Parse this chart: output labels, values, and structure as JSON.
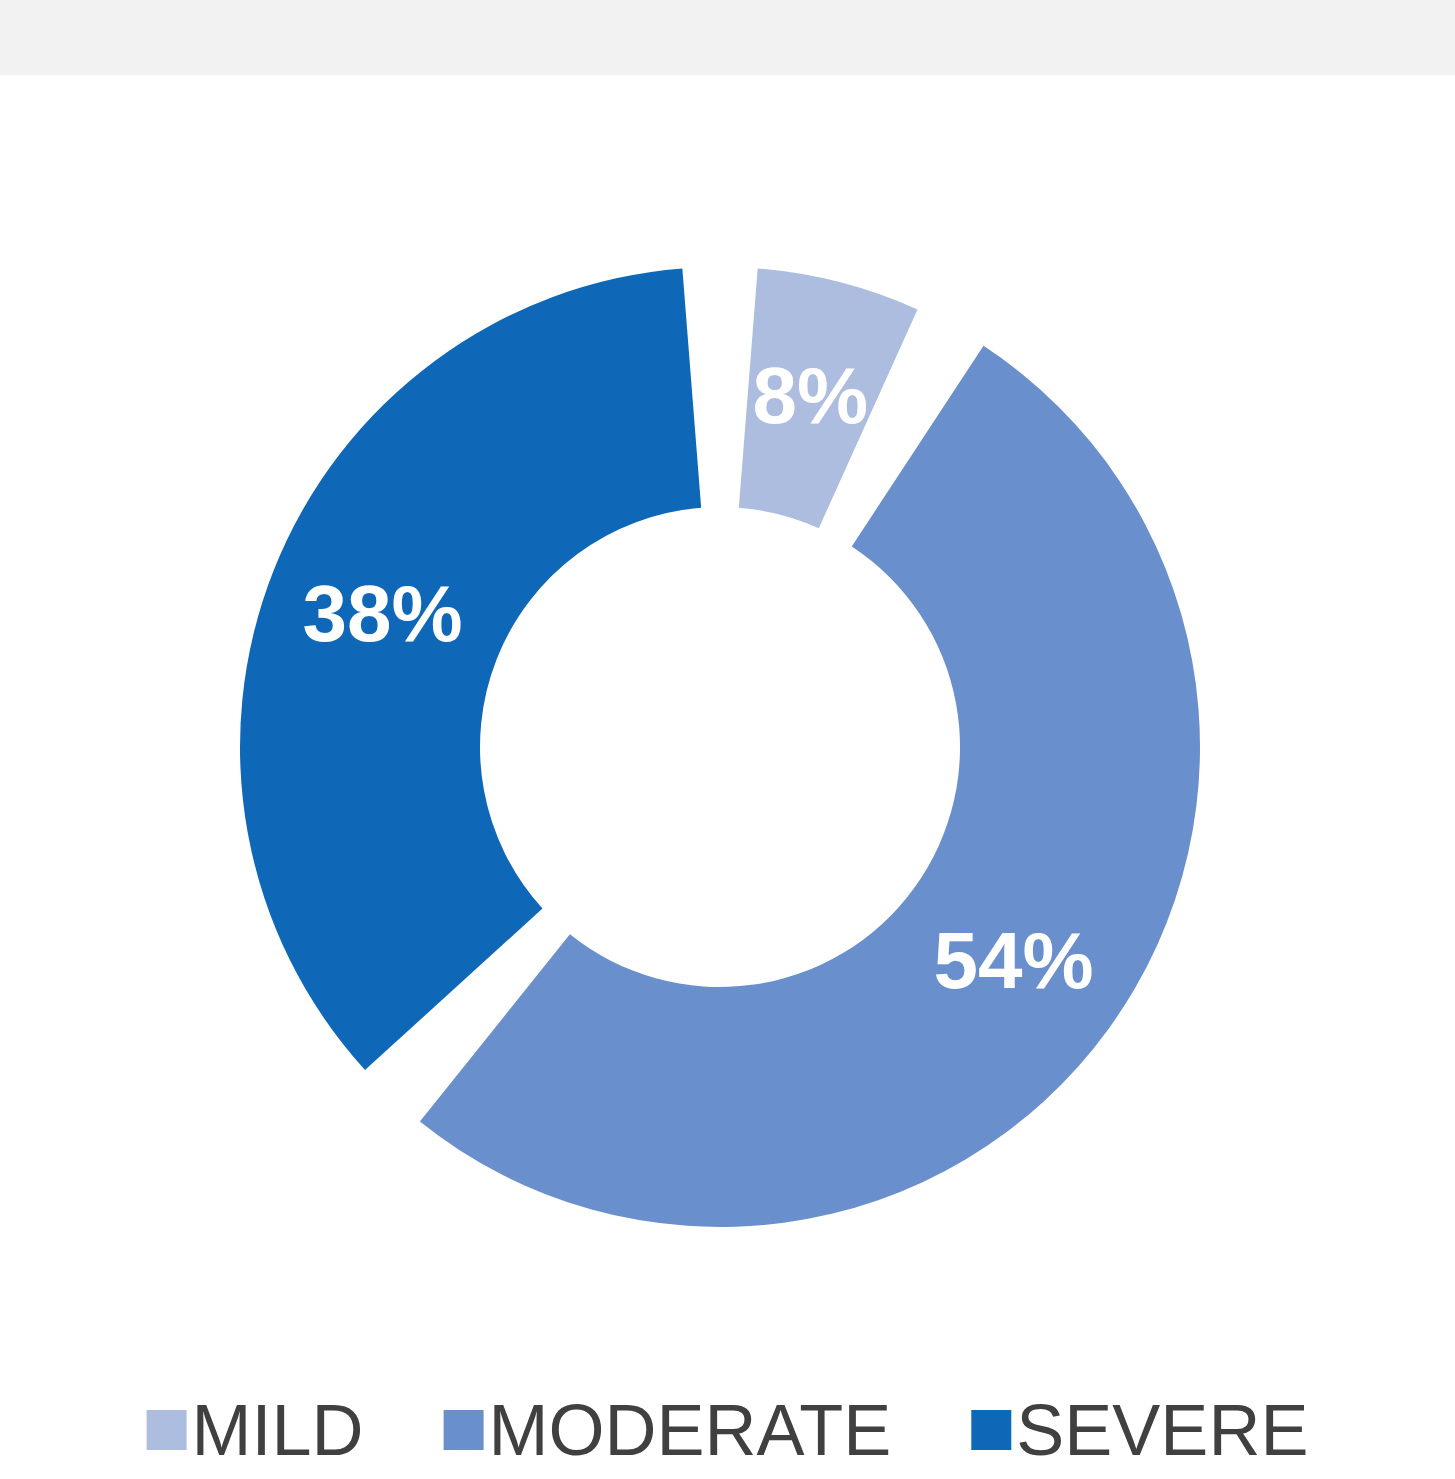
{
  "chart_data": {
    "type": "donut",
    "categories": [
      "MILD",
      "MODERATE",
      "SEVERE"
    ],
    "values": [
      8,
      54,
      38
    ],
    "colors": [
      "#adbde0",
      "#6a8fcd",
      "#0e67b7"
    ],
    "value_labels": [
      "8%",
      "54%",
      "38%"
    ],
    "legend": "bottom"
  }
}
